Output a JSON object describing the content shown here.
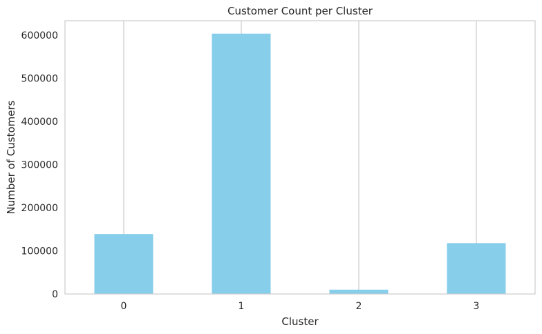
{
  "chart_data": {
    "type": "bar",
    "title": "Customer Count per Cluster",
    "xlabel": "Cluster",
    "ylabel": "Number of Customers",
    "categories": [
      "0",
      "1",
      "2",
      "3"
    ],
    "values": [
      139000,
      604000,
      10000,
      118000
    ],
    "ylim": [
      0,
      634000
    ],
    "yticks": [
      "0",
      "100000",
      "200000",
      "300000",
      "400000",
      "500000",
      "600000"
    ],
    "grid": "vertical",
    "bar_color": "#87CEEB"
  }
}
